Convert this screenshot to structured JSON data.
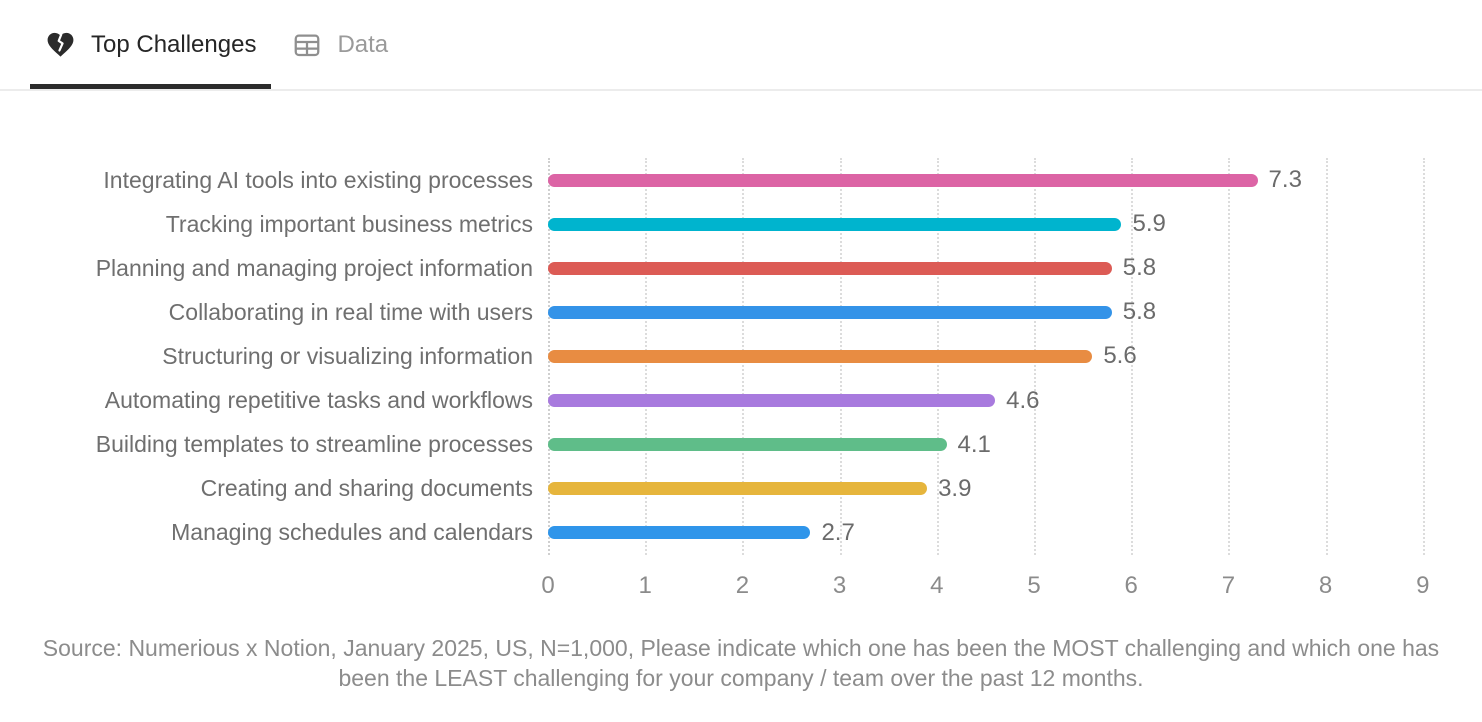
{
  "tabs": [
    {
      "label": "Top Challenges",
      "icon": "broken-heart",
      "active": true
    },
    {
      "label": "Data",
      "icon": "table",
      "active": false
    }
  ],
  "chart_data": {
    "type": "bar",
    "orientation": "horizontal",
    "title": "",
    "xlabel": "",
    "ylabel": "",
    "categories": [
      "Integrating AI tools into existing processes",
      "Tracking important business metrics",
      "Planning and managing project information",
      "Collaborating in real time with users",
      "Structuring or visualizing information",
      "Automating repetitive tasks and workflows",
      "Building templates to streamline processes",
      "Creating and sharing documents",
      "Managing schedules and calendars"
    ],
    "values": [
      7.3,
      5.9,
      5.8,
      5.8,
      5.6,
      4.6,
      4.1,
      3.9,
      2.7
    ],
    "value_labels": [
      "7.3",
      "5.9",
      "5.8",
      "5.8",
      "5.6",
      "4.6",
      "4.1",
      "3.9",
      "2.7"
    ],
    "bar_colors": [
      "#dc64a5",
      "#00b4ce",
      "#dc5b55",
      "#3493e8",
      "#e88c42",
      "#a87ade",
      "#5fbd89",
      "#e6b53c",
      "#2f95ea"
    ],
    "xlim": [
      0,
      9
    ],
    "x_ticks": [
      "0",
      "1",
      "2",
      "3",
      "4",
      "5",
      "6",
      "7",
      "8",
      "9"
    ],
    "grid": "dotted-vertical",
    "legend": "none",
    "label_color": "#6f6f6f",
    "tick_color": "#8b8b8b"
  },
  "footer": {
    "source": "Source: Numerious x Notion, January 2025, US, N=1,000, Please indicate which one has been the MOST challenging and which one has been the LEAST challenging for your company /  team over the past 12 months."
  }
}
